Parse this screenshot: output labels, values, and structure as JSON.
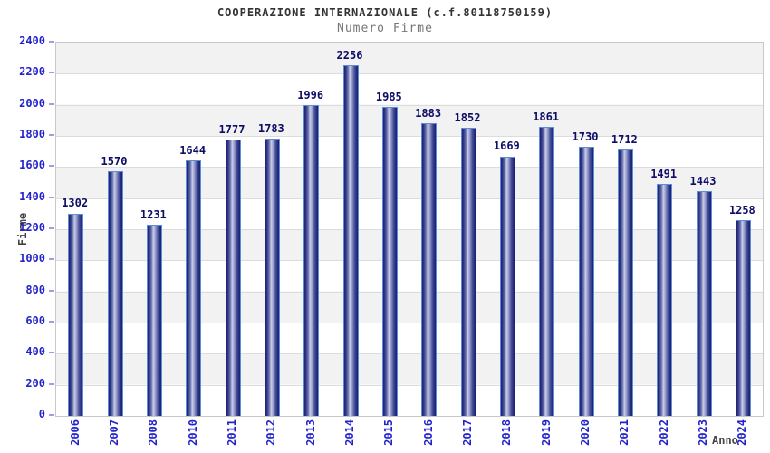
{
  "title": "COOPERAZIONE INTERNAZIONALE (c.f.80118750159)",
  "subtitle": "Numero Firme",
  "y_axis_title": "Firme",
  "x_axis_title": "Anno",
  "chart_data": {
    "type": "bar",
    "title": "COOPERAZIONE INTERNAZIONALE (c.f.80118750159)",
    "subtitle": "Numero Firme",
    "xlabel": "Anno",
    "ylabel": "Firme",
    "categories": [
      "2006",
      "2007",
      "2008",
      "2010",
      "2011",
      "2012",
      "2013",
      "2014",
      "2015",
      "2016",
      "2017",
      "2018",
      "2019",
      "2020",
      "2021",
      "2022",
      "2023",
      "2024"
    ],
    "values": [
      1302,
      1570,
      1231,
      1644,
      1777,
      1783,
      1996,
      2256,
      1985,
      1883,
      1852,
      1669,
      1861,
      1730,
      1712,
      1491,
      1443,
      1258
    ],
    "ylim": [
      0,
      2400
    ],
    "ytick_step": 200,
    "grid": "horizontal-bands-alternating",
    "legend_position": "none",
    "data_labels": "above-bars",
    "colors": {
      "tick_text": "#2323cb",
      "bar_value_text": "#0d0d66",
      "bar_dark": "#1e2472",
      "bar_light": "#c9cde8",
      "bar_border": "#5b8dd9",
      "band_gray": "#f2f2f2",
      "band_white": "#ffffff",
      "gridline": "#dcdcdc",
      "plot_border": "#c8c8c8",
      "title_text": "#333333",
      "subtitle_text": "#777777",
      "axis_title_text": "#444444"
    }
  }
}
